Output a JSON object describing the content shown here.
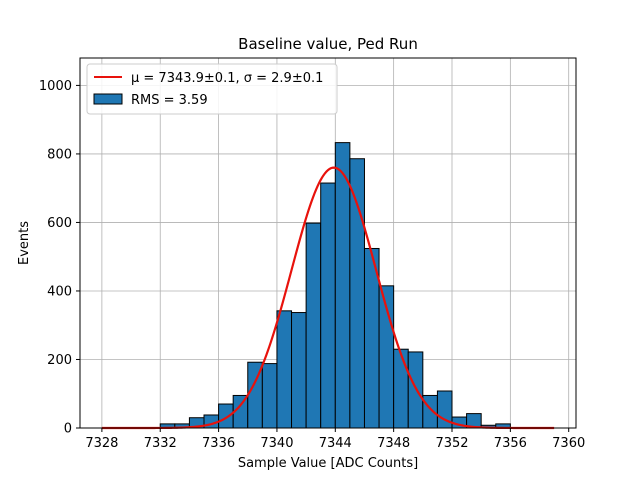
{
  "chart_data": {
    "type": "bar",
    "title": "Baseline value, Ped Run",
    "xlabel": "Sample Value [ADC Counts]",
    "ylabel": "Events",
    "xlim": [
      7326.5,
      7360.5
    ],
    "ylim": [
      0,
      1080
    ],
    "xticks": [
      7328,
      7332,
      7336,
      7340,
      7344,
      7348,
      7352,
      7356,
      7360
    ],
    "yticks": [
      0,
      200,
      400,
      600,
      800,
      1000
    ],
    "grid": true,
    "legend_position": "top-left",
    "colors": {
      "bars": "#1f77b4",
      "bar_edge": "#000000",
      "fit": "#e8120c",
      "grid": "#b0b0b0"
    },
    "histogram": {
      "name": "RMS = 3.59",
      "bin_width": 1,
      "bins": [
        {
          "x": 7332,
          "count": 12
        },
        {
          "x": 7333,
          "count": 12
        },
        {
          "x": 7334,
          "count": 30
        },
        {
          "x": 7335,
          "count": 38
        },
        {
          "x": 7336,
          "count": 70
        },
        {
          "x": 7337,
          "count": 95
        },
        {
          "x": 7338,
          "count": 192
        },
        {
          "x": 7339,
          "count": 188
        },
        {
          "x": 7340,
          "count": 342
        },
        {
          "x": 7341,
          "count": 337
        },
        {
          "x": 7342,
          "count": 598
        },
        {
          "x": 7343,
          "count": 715
        },
        {
          "x": 7344,
          "count": 833
        },
        {
          "x": 7345,
          "count": 786
        },
        {
          "x": 7346,
          "count": 524
        },
        {
          "x": 7347,
          "count": 415
        },
        {
          "x": 7348,
          "count": 230
        },
        {
          "x": 7349,
          "count": 222
        },
        {
          "x": 7350,
          "count": 95
        },
        {
          "x": 7351,
          "count": 108
        },
        {
          "x": 7352,
          "count": 32
        },
        {
          "x": 7353,
          "count": 42
        },
        {
          "x": 7354,
          "count": 8
        },
        {
          "x": 7355,
          "count": 12
        }
      ]
    },
    "fit": {
      "name": "μ = 7343.9±0.1, σ = 2.9±0.1",
      "type": "gaussian",
      "mu": 7343.9,
      "sigma": 2.9,
      "amplitude": 760,
      "x_range": [
        7328,
        7359
      ]
    }
  }
}
